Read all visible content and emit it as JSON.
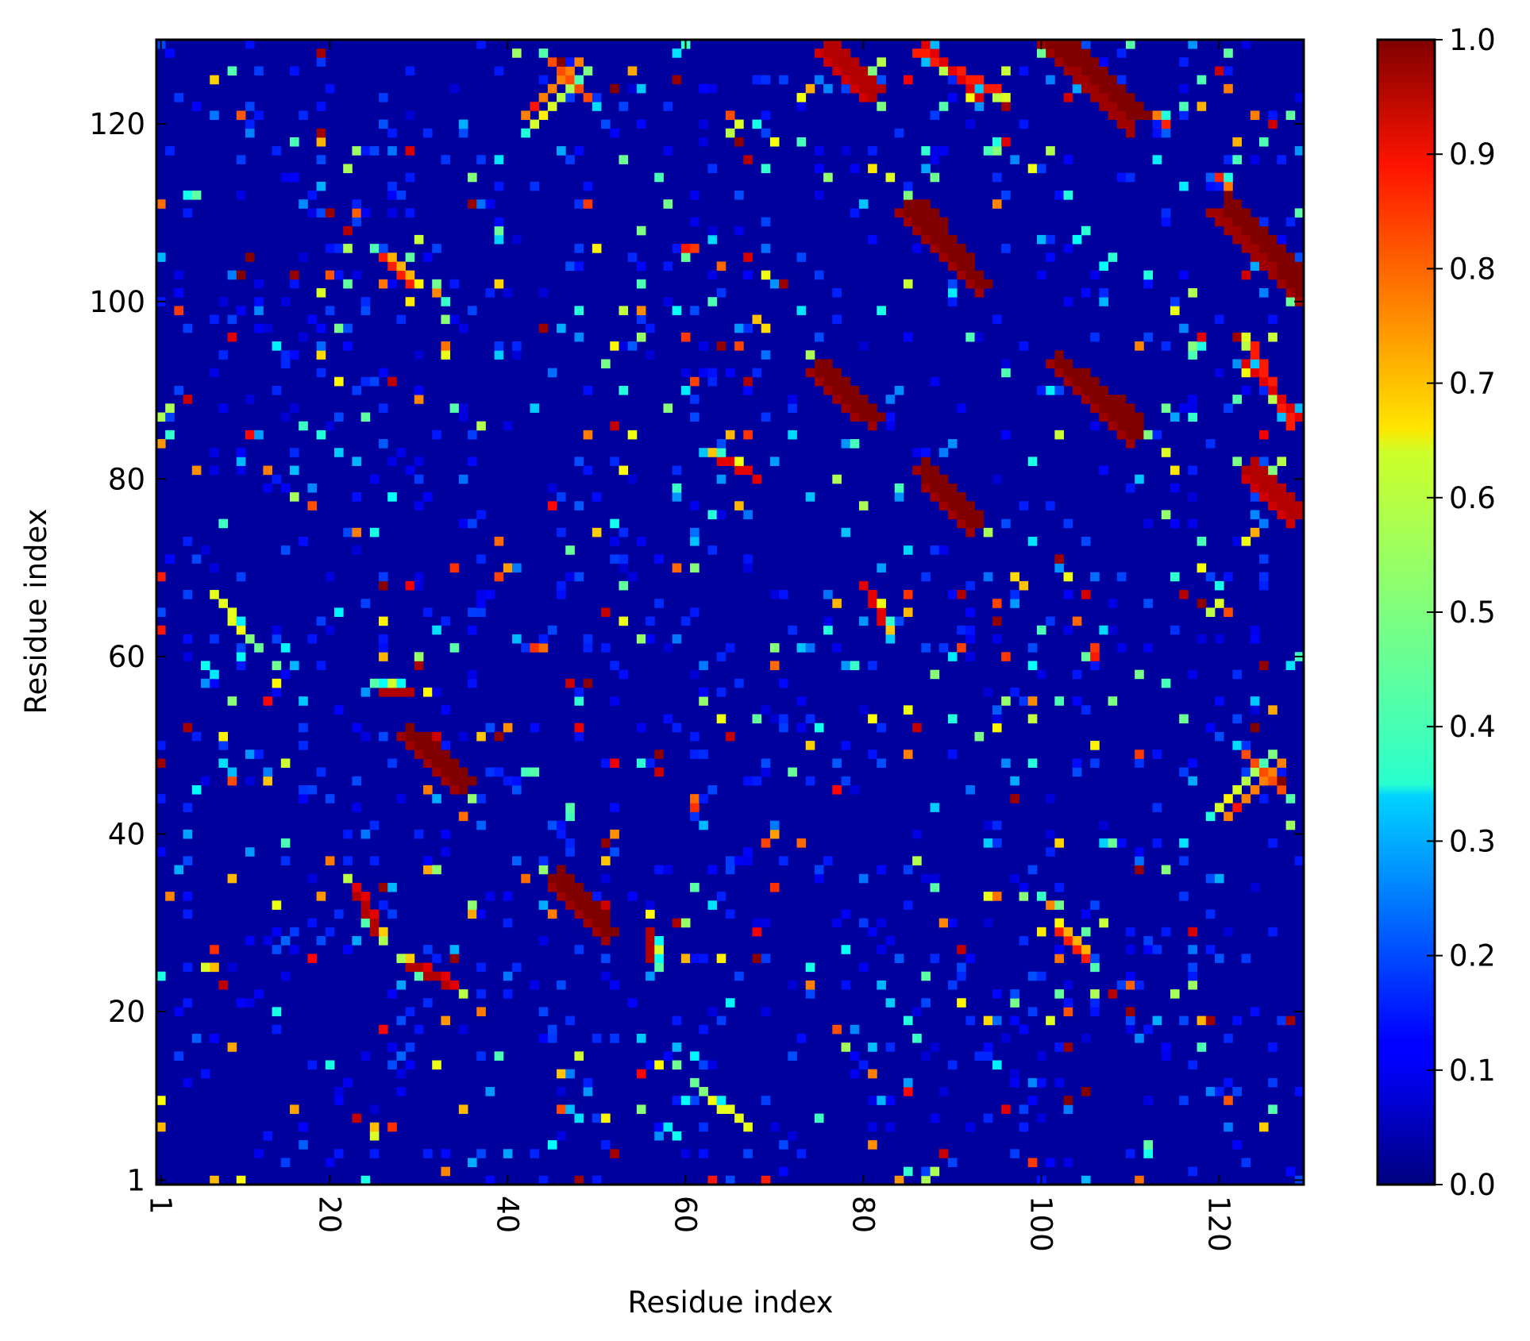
{
  "chart_data": {
    "type": "heatmap",
    "title": "",
    "xlabel": "Residue index",
    "ylabel": "Residue index",
    "n_residues": 129,
    "x_ticks": [
      1,
      20,
      40,
      60,
      80,
      100,
      120
    ],
    "y_ticks": [
      1,
      20,
      40,
      60,
      80,
      100,
      120
    ],
    "xlim": [
      1,
      129
    ],
    "ylim": [
      1,
      129
    ],
    "colorbar": {
      "min": 0.0,
      "max": 1.0,
      "colormap": "jet",
      "ticks": [
        "0.0",
        "0.1",
        "0.2",
        "0.3",
        "0.4",
        "0.5",
        "0.6",
        "0.7",
        "0.8",
        "0.9",
        "1.0"
      ]
    },
    "background_value": 0.03,
    "bands": [
      {
        "x0": 45,
        "y0": 35,
        "x1": 51,
        "y1": 29,
        "width": 2,
        "value": 1.0
      },
      {
        "x0": 30,
        "y0": 51,
        "x1": 35,
        "y1": 46,
        "width": 2,
        "value": 1.0
      },
      {
        "x0": 29,
        "y0": 25,
        "x1": 33,
        "y1": 23,
        "width": 1,
        "value": 0.95
      },
      {
        "x0": 75,
        "y0": 93,
        "x1": 81,
        "y1": 87,
        "width": 2,
        "value": 1.0
      },
      {
        "x0": 86,
        "y0": 111,
        "x1": 93,
        "y1": 102,
        "width": 2,
        "value": 1.0
      },
      {
        "x0": 102,
        "y0": 129,
        "x1": 110,
        "y1": 121,
        "width": 3,
        "value": 1.0
      },
      {
        "x0": 103,
        "y0": 92,
        "x1": 110,
        "y1": 85,
        "width": 2,
        "value": 1.0
      },
      {
        "x0": 87,
        "y0": 80,
        "x1": 92,
        "y1": 75,
        "width": 2,
        "value": 1.0
      },
      {
        "x0": 122,
        "y0": 110,
        "x1": 129,
        "y1": 101,
        "width": 2,
        "value": 1.0
      },
      {
        "x0": 123,
        "y0": 81,
        "x1": 128,
        "y1": 76,
        "width": 2,
        "value": 0.95
      },
      {
        "x0": 124,
        "y0": 95,
        "x1": 128,
        "y1": 86,
        "width": 1,
        "value": 0.85
      },
      {
        "x0": 45,
        "y0": 127,
        "x1": 49,
        "y1": 123,
        "width": 1,
        "value": 0.8
      },
      {
        "x0": 76,
        "y0": 129,
        "x1": 81,
        "y1": 124,
        "width": 2,
        "value": 0.95
      },
      {
        "x0": 87,
        "y0": 129,
        "x1": 93,
        "y1": 123,
        "width": 1,
        "value": 0.9
      },
      {
        "x0": 23,
        "y0": 34,
        "x1": 25,
        "y1": 31,
        "width": 1,
        "value": 0.9
      },
      {
        "x0": 26,
        "y0": 56,
        "x1": 29,
        "y1": 56,
        "width": 1,
        "value": 0.95
      },
      {
        "x0": 121,
        "y0": 42,
        "x1": 127,
        "y1": 48,
        "width": 1,
        "value": 0.75
      },
      {
        "x0": 64,
        "y0": 82,
        "x1": 68,
        "y1": 80,
        "width": 1,
        "value": 0.9
      },
      {
        "x0": 26,
        "y0": 105,
        "x1": 29,
        "y1": 102,
        "width": 1,
        "value": 0.85
      },
      {
        "x0": 103,
        "y0": 29,
        "x1": 105,
        "y1": 27,
        "width": 1,
        "value": 0.7
      },
      {
        "x0": 63,
        "y0": 10,
        "x1": 67,
        "y1": 7,
        "width": 1,
        "value": 0.6
      }
    ],
    "scatter_seed": 17,
    "scatter_density": 0.09
  }
}
